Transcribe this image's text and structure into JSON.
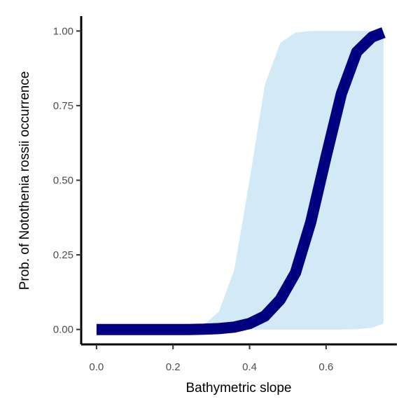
{
  "chart_data": {
    "type": "line",
    "title": "",
    "xlabel": "Bathymetric slope",
    "ylabel": "Prob. of  Notothenia rossii  occurrence",
    "xlim": [
      -0.04,
      0.785
    ],
    "ylim": [
      -0.05,
      1.05
    ],
    "x_ticks": [
      0.0,
      0.2,
      0.4,
      0.6
    ],
    "x_tick_labels": [
      "0.0",
      "0.2",
      "0.4",
      "0.6"
    ],
    "y_ticks": [
      0.0,
      0.25,
      0.5,
      0.75,
      1.0
    ],
    "y_tick_labels": [
      "0.00",
      "0.25",
      "0.50",
      "0.75",
      "1.00"
    ],
    "grid": false,
    "legend": "none",
    "colors": {
      "line": "#000080",
      "ribbon": "#d1eaf6",
      "axis": "#000000",
      "tick_text": "#4d4d4d"
    },
    "series": [
      {
        "x": [
          0.0,
          0.04,
          0.08,
          0.12,
          0.16,
          0.2,
          0.24,
          0.28,
          0.32,
          0.36,
          0.4,
          0.44,
          0.48,
          0.52,
          0.56,
          0.6,
          0.64,
          0.68,
          0.72,
          0.75
        ],
        "values": [
          0.0,
          0.0,
          0.0,
          0.0,
          0.0,
          0.0,
          0.0,
          0.001,
          0.003,
          0.008,
          0.02,
          0.045,
          0.1,
          0.19,
          0.36,
          0.58,
          0.79,
          0.93,
          0.98,
          0.995
        ],
        "lower": [
          0.0,
          0.0,
          0.0,
          0.0,
          0.0,
          0.0,
          0.0,
          0.0,
          0.0,
          0.0,
          0.0,
          0.0,
          0.0,
          0.0,
          0.0,
          0.0,
          0.0,
          0.001,
          0.006,
          0.02
        ],
        "upper": [
          0.0,
          0.0,
          0.0,
          0.0,
          0.0,
          0.001,
          0.004,
          0.015,
          0.06,
          0.2,
          0.5,
          0.82,
          0.96,
          0.995,
          1.0,
          1.0,
          1.0,
          1.0,
          1.0,
          1.0
        ]
      }
    ]
  }
}
